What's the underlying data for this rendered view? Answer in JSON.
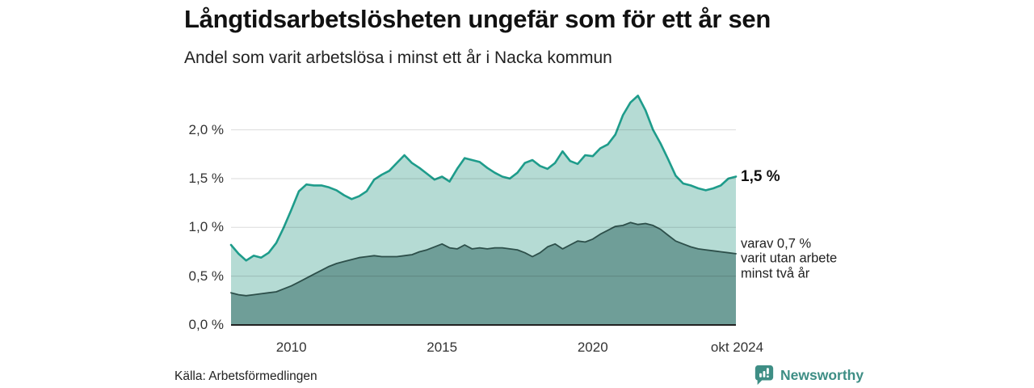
{
  "header": {
    "title": "Långtidsarbetslösheten ungefär som för ett år sen",
    "subtitle": "Andel som varit arbetslösa i minst ett år i Nacka kommun"
  },
  "annotations": {
    "total_end_label": "1,5 %",
    "subset_lines": [
      "varav 0,7 %",
      "varit utan arbete",
      "minst två år"
    ]
  },
  "footer": {
    "source": "Källa: Arbetsförmedlingen",
    "brand": "Newsworthy",
    "brand_icon": "newsworthy-barchart-pin-icon"
  },
  "colors": {
    "total_line": "#1e9c8b",
    "total_fill": "#b5dbd4",
    "subset_line": "#2d4f4a",
    "subset_fill": "#6f9e98",
    "gridline": "rgba(0,0,0,0.14)",
    "axis": "#222222",
    "brand_teal": "#3e8e85",
    "text_dark": "#111111"
  },
  "chart_data": {
    "type": "area",
    "title": "Långtidsarbetslösheten ungefär som för ett år sen",
    "subtitle": "Andel som varit arbetslösa i minst ett år i Nacka kommun",
    "unit": "%",
    "xlabel": "",
    "ylabel": "",
    "x_range": [
      2008.0,
      2024.75
    ],
    "ylim": [
      0,
      2.5
    ],
    "grid": true,
    "legend_position": "right-end-annotations",
    "y_ticks": [
      {
        "label": "0,0 %",
        "value": 0.0
      },
      {
        "label": "0,5 %",
        "value": 0.5
      },
      {
        "label": "1,0 %",
        "value": 1.0
      },
      {
        "label": "1,5 %",
        "value": 1.5
      },
      {
        "label": "2,0 %",
        "value": 2.0
      }
    ],
    "x_ticks": [
      {
        "label": "2010",
        "year": 2010
      },
      {
        "label": "2015",
        "year": 2015
      },
      {
        "label": "2020",
        "year": 2020
      },
      {
        "label": "okt 2024",
        "year": 2024.79
      }
    ],
    "x": [
      2008.0,
      2008.25,
      2008.5,
      2008.75,
      2009.0,
      2009.25,
      2009.5,
      2009.75,
      2010.0,
      2010.25,
      2010.5,
      2010.75,
      2011.0,
      2011.25,
      2011.5,
      2011.75,
      2012.0,
      2012.25,
      2012.5,
      2012.75,
      2013.0,
      2013.25,
      2013.5,
      2013.75,
      2014.0,
      2014.25,
      2014.5,
      2014.75,
      2015.0,
      2015.25,
      2015.5,
      2015.75,
      2016.0,
      2016.25,
      2016.5,
      2016.75,
      2017.0,
      2017.25,
      2017.5,
      2017.75,
      2018.0,
      2018.25,
      2018.5,
      2018.75,
      2019.0,
      2019.25,
      2019.5,
      2019.75,
      2020.0,
      2020.25,
      2020.5,
      2020.75,
      2021.0,
      2021.25,
      2021.5,
      2021.75,
      2022.0,
      2022.25,
      2022.5,
      2022.75,
      2023.0,
      2023.25,
      2023.5,
      2023.75,
      2024.0,
      2024.25,
      2024.5,
      2024.75
    ],
    "series": [
      {
        "name": "Andel arbetslösa minst ett år",
        "end_value_label": "1,5 %",
        "line_color": "#1e9c8b",
        "fill_color": "#b5dbd4",
        "values": [
          0.82,
          0.73,
          0.66,
          0.71,
          0.69,
          0.74,
          0.84,
          1.0,
          1.18,
          1.37,
          1.44,
          1.43,
          1.43,
          1.41,
          1.38,
          1.33,
          1.29,
          1.32,
          1.37,
          1.49,
          1.54,
          1.58,
          1.66,
          1.74,
          1.66,
          1.61,
          1.55,
          1.49,
          1.52,
          1.47,
          1.6,
          1.71,
          1.69,
          1.67,
          1.61,
          1.56,
          1.52,
          1.5,
          1.56,
          1.66,
          1.69,
          1.63,
          1.6,
          1.66,
          1.78,
          1.68,
          1.65,
          1.74,
          1.73,
          1.81,
          1.85,
          1.95,
          2.15,
          2.28,
          2.35,
          2.2,
          2.0,
          1.86,
          1.7,
          1.53,
          1.45,
          1.43,
          1.4,
          1.38,
          1.4,
          1.43,
          1.5,
          1.52
        ]
      },
      {
        "name": "varav utan arbete minst två år",
        "end_value_label": "varav 0,7 % varit utan arbete minst två år",
        "line_color": "#2d4f4a",
        "fill_color": "#6f9e98",
        "values": [
          0.33,
          0.31,
          0.3,
          0.31,
          0.32,
          0.33,
          0.34,
          0.37,
          0.4,
          0.44,
          0.48,
          0.52,
          0.56,
          0.6,
          0.63,
          0.65,
          0.67,
          0.69,
          0.7,
          0.71,
          0.7,
          0.7,
          0.7,
          0.71,
          0.72,
          0.75,
          0.77,
          0.8,
          0.83,
          0.79,
          0.78,
          0.82,
          0.78,
          0.79,
          0.78,
          0.79,
          0.79,
          0.78,
          0.77,
          0.74,
          0.7,
          0.74,
          0.8,
          0.83,
          0.78,
          0.82,
          0.86,
          0.85,
          0.88,
          0.93,
          0.97,
          1.01,
          1.02,
          1.05,
          1.03,
          1.04,
          1.02,
          0.98,
          0.92,
          0.86,
          0.83,
          0.8,
          0.78,
          0.77,
          0.76,
          0.75,
          0.74,
          0.73
        ]
      }
    ]
  }
}
